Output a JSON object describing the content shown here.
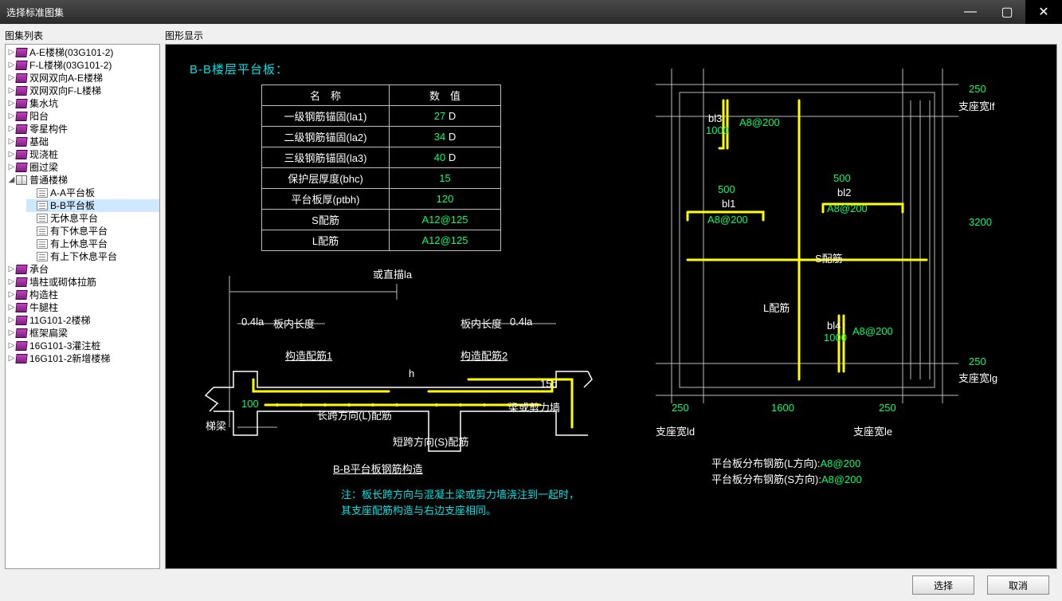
{
  "window": {
    "title": "选择标准图集"
  },
  "labels": {
    "listPanel": "图集列表",
    "canvasPanel": "图形显示"
  },
  "buttons": {
    "select": "选择",
    "cancel": "取消"
  },
  "tree": {
    "items": [
      {
        "label": "A-E楼梯(03G101-2)",
        "icon": "book",
        "expander": "▷"
      },
      {
        "label": "F-L楼梯(03G101-2)",
        "icon": "book",
        "expander": "▷"
      },
      {
        "label": "双网双向A-E楼梯",
        "icon": "book",
        "expander": "▷"
      },
      {
        "label": "双网双向F-L楼梯",
        "icon": "book",
        "expander": "▷"
      },
      {
        "label": "集水坑",
        "icon": "book",
        "expander": "▷"
      },
      {
        "label": "阳台",
        "icon": "book",
        "expander": "▷"
      },
      {
        "label": "零星构件",
        "icon": "book",
        "expander": "▷"
      },
      {
        "label": "基础",
        "icon": "book",
        "expander": "▷"
      },
      {
        "label": "现浇桩",
        "icon": "book",
        "expander": "▷"
      },
      {
        "label": "圈过梁",
        "icon": "book",
        "expander": "▷"
      },
      {
        "label": "普通楼梯",
        "icon": "book-open",
        "expander": "◢",
        "children": [
          {
            "label": "A-A平台板",
            "icon": "page"
          },
          {
            "label": "B-B平台板",
            "icon": "page",
            "selected": true
          },
          {
            "label": "无休息平台",
            "icon": "page"
          },
          {
            "label": "有下休息平台",
            "icon": "page"
          },
          {
            "label": "有上休息平台",
            "icon": "page"
          },
          {
            "label": "有上下休息平台",
            "icon": "page"
          }
        ]
      },
      {
        "label": "承台",
        "icon": "book",
        "expander": "▷"
      },
      {
        "label": "墙柱或砌体拉筋",
        "icon": "book",
        "expander": "▷"
      },
      {
        "label": "构造柱",
        "icon": "book",
        "expander": "▷"
      },
      {
        "label": "牛腿柱",
        "icon": "book",
        "expander": "▷"
      },
      {
        "label": "11G101-2楼梯",
        "icon": "book",
        "expander": "▷"
      },
      {
        "label": "框架扁梁",
        "icon": "book",
        "expander": "▷"
      },
      {
        "label": "16G101-3灌注桩",
        "icon": "book",
        "expander": "▷"
      },
      {
        "label": "16G101-2新增楼梯",
        "icon": "book",
        "expander": "▷"
      }
    ]
  },
  "drawing": {
    "title": "B-B楼层平台板：",
    "tableHeaders": {
      "name": "名　称",
      "value": "数　值"
    },
    "params": [
      {
        "name": "一级钢筋锚固(la1)",
        "value": "27",
        "unit": "D"
      },
      {
        "name": "二级钢筋锚固(la2)",
        "value": "34",
        "unit": "D"
      },
      {
        "name": "三级钢筋锚固(la3)",
        "value": "40",
        "unit": "D"
      },
      {
        "name": "保护层厚度(bhc)",
        "value": "15",
        "unit": ""
      },
      {
        "name": "平台板厚(ptbh)",
        "value": "120",
        "unit": ""
      },
      {
        "name": "S配筋",
        "value": "A12@125",
        "unit": ""
      },
      {
        "name": "L配筋",
        "value": "A12@125",
        "unit": ""
      }
    ],
    "left": {
      "topNote": "或直描la",
      "d04la": "0.4la",
      "bannei": "板内长度",
      "bannei2": "板内长度",
      "d04la2": "0.4la",
      "gz1": "构造配筋1",
      "gz2": "构造配筋2",
      "h": "h",
      "d15d": "15d",
      "d100": "100",
      "tl": "梯梁",
      "lspan": "长跨方向(L)配筋",
      "sspan": "短跨方向(S)配筋",
      "beam": "梁或剪力墙",
      "caption": "B-B平台板钢筋构造",
      "note": "注：板长跨方向与混凝土梁或剪力墙浇注到一起时，其支座配筋构造与右边支座相同。"
    },
    "right": {
      "d250a": "250",
      "lf": "支座宽lf",
      "bl3": "bl3",
      "bl3v": "1000",
      "bl3rebar": "A8@200",
      "d500a": "500",
      "d500b": "500",
      "bl1": "bl1",
      "bl1rebar": "A8@200",
      "bl2": "bl2",
      "bl2rebar": "A8@200",
      "s": "S配筋",
      "l": "L配筋",
      "d3200": "3200",
      "bl4": "bl4",
      "bl4v": "1000",
      "bl4rebar": "A8@200",
      "d250b": "250",
      "lg": "支座宽lg",
      "d250c": "250",
      "d1600": "1600",
      "d250d": "250",
      "ld": "支座宽ld",
      "le": "支座宽le",
      "distL": "平台板分布钢筋(L方向):",
      "distLv": "A8@200",
      "distS": "平台板分布钢筋(S方向):",
      "distSv": "A8@200"
    },
    "colors": {
      "rebar_yellow": "#ffff00",
      "value_green": "#00ff66",
      "cad_cyan": "#00e0e0",
      "cad_white": "#ffffff",
      "grid": "#bdbdbd"
    }
  }
}
